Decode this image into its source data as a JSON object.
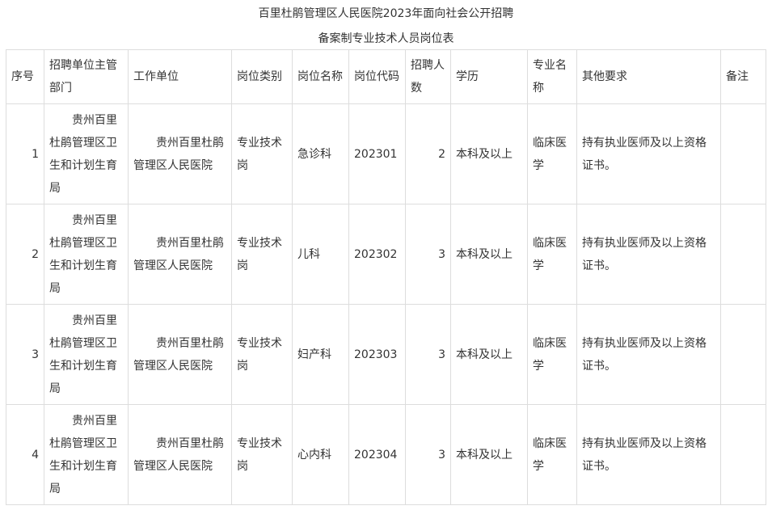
{
  "title_line1": "百里杜鹃管理区人民医院2023年面向社会公开招聘",
  "title_line2": "备案制专业技术人员岗位表",
  "headers": [
    "序号",
    "招聘单位主管部门",
    "工作单位",
    "岗位类别",
    "岗位名称",
    "岗位代码",
    "招聘人数",
    "学历",
    "专业名称",
    "其他要求",
    "备注"
  ],
  "rows": [
    {
      "no": "1",
      "dept": "贵州百里杜鹃管理区卫生和计划生育局",
      "unit": "贵州百里杜鹃管理区人民医院",
      "category": "专业技术岗",
      "name": "急诊科",
      "code": "202301",
      "count": "2",
      "edu": "本科及以上",
      "major": "临床医学",
      "other": "持有执业医师及以上资格证书。",
      "note": ""
    },
    {
      "no": "2",
      "dept": "贵州百里杜鹃管理区卫生和计划生育局",
      "unit": "贵州百里杜鹃管理区人民医院",
      "category": "专业技术岗",
      "name": "儿科",
      "code": "202302",
      "count": "3",
      "edu": "本科及以上",
      "major": "临床医学",
      "other": "持有执业医师及以上资格证书。",
      "note": ""
    },
    {
      "no": "3",
      "dept": "贵州百里杜鹃管理区卫生和计划生育局",
      "unit": "贵州百里杜鹃管理区人民医院",
      "category": "专业技术岗",
      "name": "妇产科",
      "code": "202303",
      "count": "3",
      "edu": "本科及以上",
      "major": "临床医学",
      "other": "持有执业医师及以上资格证书。",
      "note": ""
    },
    {
      "no": "4",
      "dept": "贵州百里杜鹃管理区卫生和计划生育局",
      "unit": "贵州百里杜鹃管理区人民医院",
      "category": "专业技术岗",
      "name": "心内科",
      "code": "202304",
      "count": "3",
      "edu": "本科及以上",
      "major": "临床医学",
      "other": "持有执业医师及以上资格证书。",
      "note": ""
    }
  ]
}
